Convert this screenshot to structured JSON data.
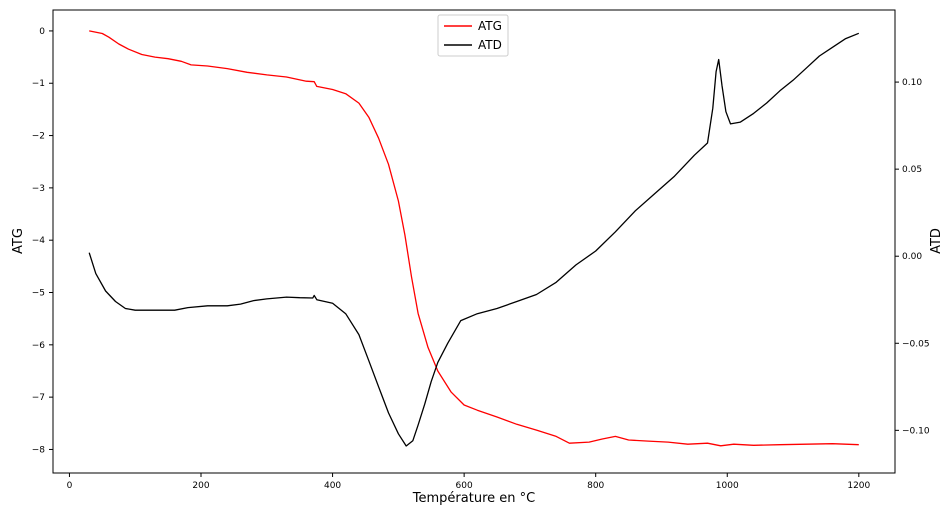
{
  "chart_data": {
    "type": "line",
    "xlabel": "Température en °C",
    "ylabel_left": "ATG",
    "ylabel_right": "ATD",
    "xlim": [
      -25,
      1255
    ],
    "ylim_left": [
      -8.45,
      0.4
    ],
    "ylim_right": [
      -0.1245,
      0.1414
    ],
    "x_ticks": [
      0,
      200,
      400,
      600,
      800,
      1000,
      1200
    ],
    "y_left_ticks": [
      0,
      -1,
      -2,
      -3,
      -4,
      -5,
      -6,
      -7,
      -8
    ],
    "y_right_ticks": [
      0.1,
      0.05,
      0.0,
      -0.05,
      -0.1
    ],
    "x_tick_labels": [
      "0",
      "200",
      "400",
      "600",
      "800",
      "1000",
      "1200"
    ],
    "y_left_tick_labels": [
      "0",
      "−1",
      "−2",
      "−3",
      "−4",
      "−5",
      "−6",
      "−7",
      "−8"
    ],
    "y_right_tick_labels": [
      "0.10",
      "0.05",
      "0.00",
      "−0.05",
      "−0.10"
    ],
    "grid": false,
    "legend_position": "top-center",
    "series": [
      {
        "name": "ATG",
        "axis": "left",
        "color": "#ff0000",
        "points": [
          [
            30,
            0
          ],
          [
            50,
            -0.05
          ],
          [
            60,
            -0.12
          ],
          [
            75,
            -0.25
          ],
          [
            90,
            -0.35
          ],
          [
            110,
            -0.45
          ],
          [
            130,
            -0.5
          ],
          [
            150,
            -0.53
          ],
          [
            170,
            -0.58
          ],
          [
            185,
            -0.65
          ],
          [
            210,
            -0.67
          ],
          [
            240,
            -0.72
          ],
          [
            270,
            -0.79
          ],
          [
            300,
            -0.84
          ],
          [
            330,
            -0.88
          ],
          [
            360,
            -0.96
          ],
          [
            372,
            -0.97
          ],
          [
            376,
            -1.06
          ],
          [
            400,
            -1.12
          ],
          [
            420,
            -1.2
          ],
          [
            440,
            -1.38
          ],
          [
            455,
            -1.65
          ],
          [
            470,
            -2.05
          ],
          [
            485,
            -2.55
          ],
          [
            500,
            -3.25
          ],
          [
            510,
            -3.9
          ],
          [
            520,
            -4.7
          ],
          [
            530,
            -5.4
          ],
          [
            545,
            -6.05
          ],
          [
            560,
            -6.5
          ],
          [
            580,
            -6.9
          ],
          [
            600,
            -7.15
          ],
          [
            620,
            -7.25
          ],
          [
            650,
            -7.38
          ],
          [
            680,
            -7.52
          ],
          [
            710,
            -7.63
          ],
          [
            740,
            -7.75
          ],
          [
            760,
            -7.88
          ],
          [
            790,
            -7.86
          ],
          [
            810,
            -7.8
          ],
          [
            830,
            -7.75
          ],
          [
            850,
            -7.82
          ],
          [
            880,
            -7.84
          ],
          [
            910,
            -7.86
          ],
          [
            940,
            -7.9
          ],
          [
            970,
            -7.88
          ],
          [
            990,
            -7.93
          ],
          [
            1010,
            -7.9
          ],
          [
            1040,
            -7.92
          ],
          [
            1080,
            -7.91
          ],
          [
            1120,
            -7.9
          ],
          [
            1160,
            -7.89
          ],
          [
            1200,
            -7.91
          ]
        ]
      },
      {
        "name": "ATD",
        "axis": "right",
        "color": "#000000",
        "points": [
          [
            30,
            0.002
          ],
          [
            40,
            -0.01
          ],
          [
            55,
            -0.02
          ],
          [
            70,
            -0.026
          ],
          [
            85,
            -0.03
          ],
          [
            100,
            -0.031
          ],
          [
            130,
            -0.031
          ],
          [
            160,
            -0.031
          ],
          [
            180,
            -0.0295
          ],
          [
            210,
            -0.0285
          ],
          [
            240,
            -0.0285
          ],
          [
            260,
            -0.0275
          ],
          [
            280,
            -0.0255
          ],
          [
            300,
            -0.0245
          ],
          [
            330,
            -0.0235
          ],
          [
            350,
            -0.0238
          ],
          [
            370,
            -0.024
          ],
          [
            372,
            -0.0225
          ],
          [
            376,
            -0.025
          ],
          [
            400,
            -0.027
          ],
          [
            420,
            -0.033
          ],
          [
            440,
            -0.045
          ],
          [
            455,
            -0.06
          ],
          [
            470,
            -0.075
          ],
          [
            485,
            -0.09
          ],
          [
            500,
            -0.102
          ],
          [
            512,
            -0.109
          ],
          [
            522,
            -0.106
          ],
          [
            530,
            -0.097
          ],
          [
            540,
            -0.085
          ],
          [
            550,
            -0.072
          ],
          [
            560,
            -0.061
          ],
          [
            575,
            -0.05
          ],
          [
            595,
            -0.037
          ],
          [
            620,
            -0.033
          ],
          [
            650,
            -0.03
          ],
          [
            680,
            -0.026
          ],
          [
            710,
            -0.022
          ],
          [
            740,
            -0.015
          ],
          [
            770,
            -0.005
          ],
          [
            800,
            0.003
          ],
          [
            830,
            0.014
          ],
          [
            860,
            0.026
          ],
          [
            890,
            0.036
          ],
          [
            920,
            0.046
          ],
          [
            950,
            0.058
          ],
          [
            970,
            0.065
          ],
          [
            978,
            0.085
          ],
          [
            983,
            0.106
          ],
          [
            987,
            0.113
          ],
          [
            992,
            0.098
          ],
          [
            998,
            0.083
          ],
          [
            1005,
            0.076
          ],
          [
            1020,
            0.077
          ],
          [
            1040,
            0.082
          ],
          [
            1060,
            0.088
          ],
          [
            1080,
            0.095
          ],
          [
            1100,
            0.101
          ],
          [
            1120,
            0.108
          ],
          [
            1140,
            0.115
          ],
          [
            1160,
            0.12
          ],
          [
            1180,
            0.125
          ],
          [
            1200,
            0.128
          ]
        ]
      }
    ]
  }
}
